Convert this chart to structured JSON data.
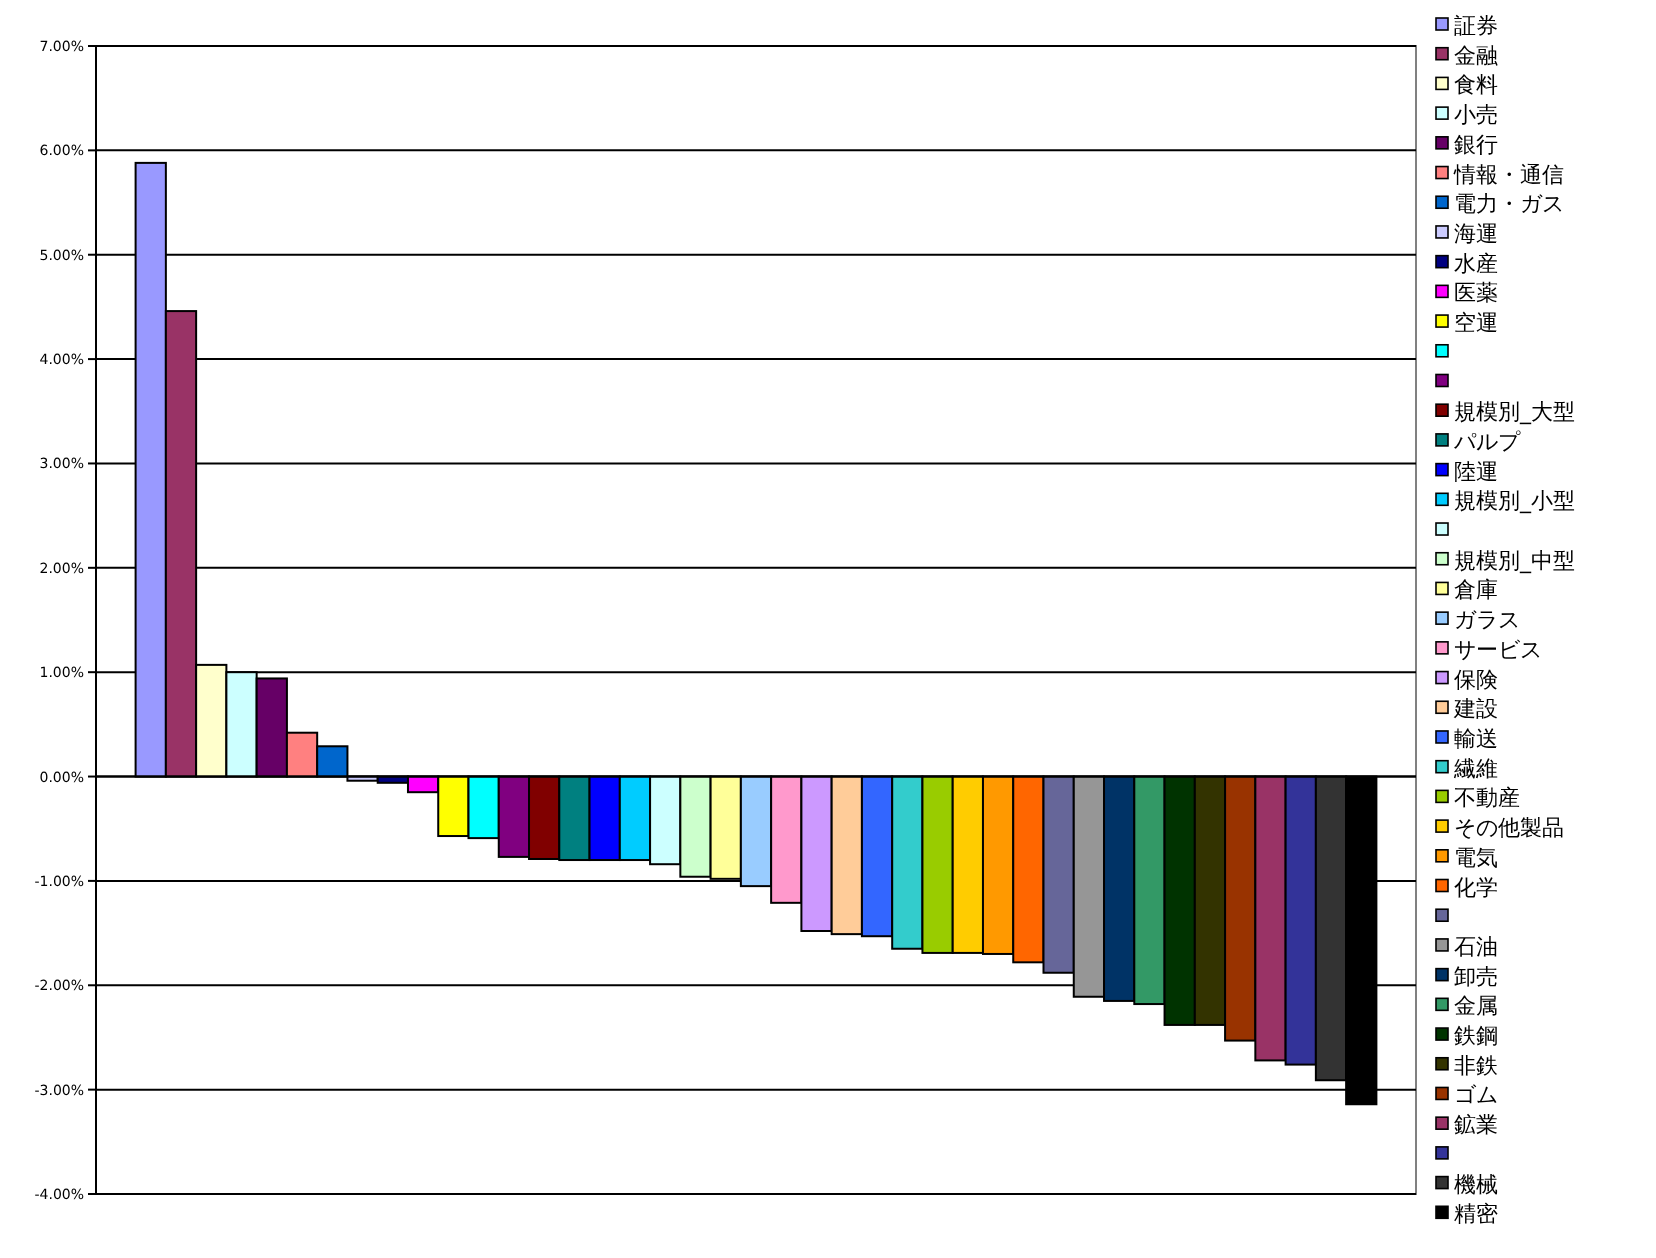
{
  "chart_data": {
    "type": "bar",
    "categories": [
      null
    ],
    "ylim": [
      -4,
      7
    ],
    "yticks": [
      {
        "value": -4,
        "label": "-4.00%"
      },
      {
        "value": -3,
        "label": "-3.00%"
      },
      {
        "value": -2,
        "label": "-2.00%"
      },
      {
        "value": -1,
        "label": "-1.00%"
      },
      {
        "value": 0,
        "label": "0.00%"
      },
      {
        "value": 1,
        "label": "1.00%"
      },
      {
        "value": 2,
        "label": "2.00%"
      },
      {
        "value": 3,
        "label": "3.00%"
      },
      {
        "value": 4,
        "label": "4.00%"
      },
      {
        "value": 5,
        "label": "5.00%"
      },
      {
        "value": 6,
        "label": "6.00%"
      },
      {
        "value": 7,
        "label": "7.00%"
      }
    ],
    "grid": "y",
    "legend": "right",
    "series": [
      {
        "name": "証券",
        "color": "#9999ff",
        "values": [
          5.88
        ]
      },
      {
        "name": "金融",
        "color": "#993366",
        "values": [
          4.46
        ]
      },
      {
        "name": "食料",
        "color": "#ffffcc",
        "values": [
          1.07
        ]
      },
      {
        "name": "小売",
        "color": "#ccffff",
        "values": [
          1.0
        ]
      },
      {
        "name": "銀行",
        "color": "#660066",
        "values": [
          0.94
        ]
      },
      {
        "name": "情報・通信",
        "color": "#ff8080",
        "values": [
          0.42
        ]
      },
      {
        "name": "電力・ガス",
        "color": "#0066cc",
        "values": [
          0.29
        ]
      },
      {
        "name": "海運",
        "color": "#ccccff",
        "values": [
          -0.04
        ]
      },
      {
        "name": "水産",
        "color": "#000080",
        "values": [
          -0.06
        ]
      },
      {
        "name": "医薬",
        "color": "#ff00ff",
        "values": [
          -0.15
        ]
      },
      {
        "name": "空運",
        "color": "#ffff00",
        "values": [
          -0.57
        ]
      },
      {
        "color": "#00ffff",
        "values": [
          -0.59
        ]
      },
      {
        "color": "#800080",
        "values": [
          -0.77
        ]
      },
      {
        "name": "規模別_大型",
        "color": "#800000",
        "values": [
          -0.79
        ]
      },
      {
        "name": "パルプ",
        "color": "#008080",
        "values": [
          -0.8
        ]
      },
      {
        "name": "陸運",
        "color": "#0000ff",
        "values": [
          -0.8
        ]
      },
      {
        "name": "規模別_小型",
        "color": "#00ccff",
        "values": [
          -0.8
        ]
      },
      {
        "color": "#ccffff",
        "values": [
          -0.84
        ]
      },
      {
        "name": "規模別_中型",
        "color": "#ccffcc",
        "values": [
          -0.96
        ]
      },
      {
        "name": "倉庫",
        "color": "#ffff99",
        "values": [
          -0.98
        ]
      },
      {
        "name": "ガラス",
        "color": "#99ccff",
        "values": [
          -1.05
        ]
      },
      {
        "name": "サービス",
        "color": "#ff99cc",
        "values": [
          -1.21
        ]
      },
      {
        "name": "保険",
        "color": "#cc99ff",
        "values": [
          -1.48
        ]
      },
      {
        "name": "建設",
        "color": "#ffcc99",
        "values": [
          -1.51
        ]
      },
      {
        "name": "輸送",
        "color": "#3366ff",
        "values": [
          -1.53
        ]
      },
      {
        "name": "繊維",
        "color": "#33cccc",
        "values": [
          -1.65
        ]
      },
      {
        "name": "不動産",
        "color": "#99cc00",
        "values": [
          -1.69
        ]
      },
      {
        "name": "その他製品",
        "color": "#ffcc00",
        "values": [
          -1.69
        ]
      },
      {
        "name": "電気",
        "color": "#ff9900",
        "values": [
          -1.7
        ]
      },
      {
        "name": "化学",
        "color": "#ff6600",
        "values": [
          -1.78
        ]
      },
      {
        "color": "#666699",
        "values": [
          -1.88
        ]
      },
      {
        "name": "石油",
        "color": "#969696",
        "values": [
          -2.11
        ]
      },
      {
        "name": "卸売",
        "color": "#003366",
        "values": [
          -2.15
        ]
      },
      {
        "name": "金属",
        "color": "#339966",
        "values": [
          -2.18
        ]
      },
      {
        "name": "鉄鋼",
        "color": "#003300",
        "values": [
          -2.38
        ]
      },
      {
        "name": "非鉄",
        "color": "#333300",
        "values": [
          -2.38
        ]
      },
      {
        "name": "ゴム",
        "color": "#993300",
        "values": [
          -2.53
        ]
      },
      {
        "name": "鉱業",
        "color": "#993366",
        "values": [
          -2.72
        ]
      },
      {
        "color": "#333399",
        "values": [
          -2.76
        ]
      },
      {
        "name": "機械",
        "color": "#333333",
        "values": [
          -2.91
        ]
      },
      {
        "name": "精密",
        "color": "#000000",
        "values": [
          -3.14
        ]
      }
    ]
  }
}
